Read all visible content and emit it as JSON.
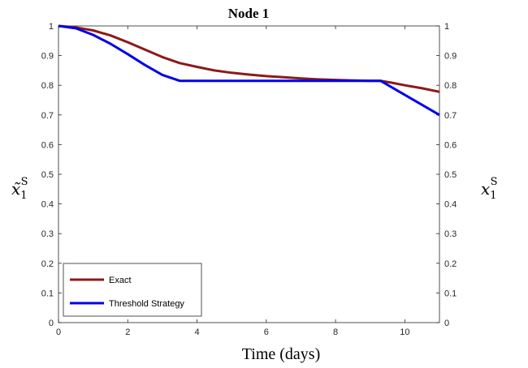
{
  "chart_data": {
    "type": "line",
    "title": "Node 1",
    "xlabel": "Time (days)",
    "ylabel_left": {
      "base": "x̃",
      "sub": "1",
      "sup": "S"
    },
    "ylabel_right": {
      "base": "x",
      "sub": "1",
      "sup": "S"
    },
    "xlim": [
      0,
      11
    ],
    "ylim": [
      0,
      1
    ],
    "xticks": [
      0,
      2,
      4,
      6,
      8,
      10
    ],
    "yticks": [
      0,
      0.1,
      0.2,
      0.3,
      0.4,
      0.5,
      0.6,
      0.7,
      0.8,
      0.9,
      1
    ],
    "ytick_labels": [
      "0",
      "0.1",
      "0.2",
      "0.3",
      "0.4",
      "0.5",
      "0.6",
      "0.7",
      "0.8",
      "0.9",
      "1"
    ],
    "grid": false,
    "legend_position": "bottom-left",
    "series": [
      {
        "name": "Exact",
        "color": "#8b1a1a",
        "points": [
          [
            0,
            1
          ],
          [
            0.5,
            0.995
          ],
          [
            1,
            0.985
          ],
          [
            1.5,
            0.968
          ],
          [
            2,
            0.945
          ],
          [
            2.5,
            0.92
          ],
          [
            3,
            0.895
          ],
          [
            3.5,
            0.875
          ],
          [
            4,
            0.862
          ],
          [
            4.5,
            0.85
          ],
          [
            5,
            0.842
          ],
          [
            5.5,
            0.836
          ],
          [
            6,
            0.831
          ],
          [
            6.5,
            0.827
          ],
          [
            7,
            0.823
          ],
          [
            7.5,
            0.82
          ],
          [
            8,
            0.818
          ],
          [
            8.5,
            0.816
          ],
          [
            9,
            0.815
          ],
          [
            9.3,
            0.815
          ],
          [
            9.6,
            0.809
          ],
          [
            10,
            0.8
          ],
          [
            10.5,
            0.79
          ],
          [
            11,
            0.778
          ]
        ]
      },
      {
        "name": "Threshold Strategy",
        "color": "#0000ee",
        "points": [
          [
            0,
            1
          ],
          [
            0.5,
            0.992
          ],
          [
            1,
            0.97
          ],
          [
            1.5,
            0.94
          ],
          [
            2,
            0.905
          ],
          [
            2.5,
            0.868
          ],
          [
            3,
            0.835
          ],
          [
            3.5,
            0.815
          ],
          [
            9.3,
            0.815
          ],
          [
            11,
            0.7
          ]
        ]
      }
    ]
  }
}
